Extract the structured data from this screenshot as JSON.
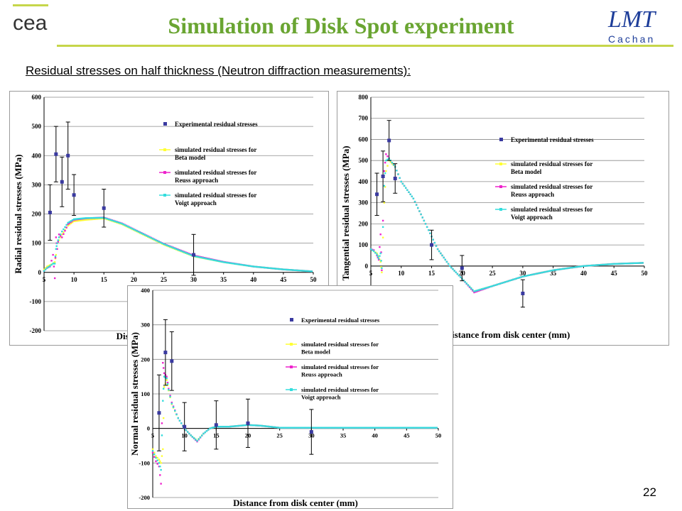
{
  "header": {
    "title": "Simulation of Disk Spot experiment",
    "left_logo_text": "cea",
    "right_logo_text": "LMT",
    "right_logo_subtext": "Cachan",
    "title_rule_color": "#c6d64a",
    "title_color": "#6aa532"
  },
  "subtitle": "Residual stresses on half thickness (Neutron diffraction measurements):",
  "page_number": "22",
  "colors": {
    "experimental": "#3a3aa0",
    "beta": "#ffff33",
    "reuss": "#ee22cc",
    "voigt": "#33dddd"
  },
  "legend_labels": [
    "Experimental residual stresses",
    "simulated residual stresses for Beta model",
    "simulated residual stresses for Reuss approach",
    "simulated residual stresses for Voigt approach"
  ],
  "chart_data": [
    {
      "id": "radial",
      "type": "scatter",
      "title": "",
      "xlabel": "Distance from disk center (mm)",
      "ylabel": "Radial residual stresses (MPa)",
      "xlim": [
        5,
        50
      ],
      "ylim": [
        -200,
        600
      ],
      "xticks": [
        5,
        10,
        15,
        20,
        25,
        30,
        35,
        40,
        45,
        50
      ],
      "yticks": [
        -200,
        -100,
        0,
        100,
        200,
        300,
        400,
        500,
        600
      ],
      "legend_position": "right",
      "experimental": [
        {
          "x": 6.0,
          "y": 205,
          "err": 95
        },
        {
          "x": 7.0,
          "y": 405,
          "err": 95
        },
        {
          "x": 8.0,
          "y": 310,
          "err": 85
        },
        {
          "x": 9.0,
          "y": 400,
          "err": 115
        },
        {
          "x": 10.0,
          "y": 265,
          "err": 70
        },
        {
          "x": 15.0,
          "y": 220,
          "err": 65
        },
        {
          "x": 30.0,
          "y": 60,
          "err": 70
        }
      ],
      "series": [
        {
          "name": "simulated residual stresses for Beta model",
          "key": "beta",
          "x": [
            5,
            5.5,
            6,
            6.5,
            6.8,
            7,
            7.2,
            7.5,
            8,
            9,
            10,
            12,
            15,
            18,
            20,
            25,
            30,
            35,
            40,
            45,
            50
          ],
          "y": [
            10,
            20,
            25,
            30,
            35,
            60,
            100,
            110,
            130,
            160,
            175,
            180,
            185,
            165,
            145,
            95,
            55,
            35,
            20,
            10,
            3
          ]
        },
        {
          "name": "simulated residual stresses for Reuss approach",
          "key": "reuss",
          "x": [
            5,
            5.5,
            6,
            6.5,
            6.8,
            7,
            7.2,
            7.5,
            8,
            9,
            10,
            12,
            15,
            18,
            20,
            25,
            30,
            35,
            40,
            45,
            50
          ],
          "y": [
            5,
            15,
            20,
            60,
            -20,
            120,
            80,
            130,
            120,
            165,
            180,
            185,
            188,
            168,
            148,
            98,
            58,
            36,
            20,
            10,
            3
          ]
        },
        {
          "name": "simulated residual stresses for Voigt approach",
          "key": "voigt",
          "x": [
            5,
            5.5,
            6,
            6.5,
            6.8,
            7,
            7.2,
            7.5,
            8,
            9,
            10,
            12,
            15,
            18,
            20,
            25,
            30,
            35,
            40,
            45,
            50
          ],
          "y": [
            5,
            15,
            22,
            30,
            30,
            80,
            100,
            120,
            140,
            170,
            182,
            186,
            187,
            167,
            147,
            97,
            56,
            35,
            20,
            10,
            3
          ]
        }
      ]
    },
    {
      "id": "tangential",
      "type": "scatter",
      "title": "",
      "xlabel": "Distance from disk center (mm)",
      "ylabel": "Tangential residual stresses (MPa)",
      "xlim": [
        5,
        50
      ],
      "ylim": [
        -300,
        800
      ],
      "xticks": [
        5,
        10,
        15,
        20,
        25,
        30,
        35,
        40,
        45,
        50
      ],
      "yticks": [
        0,
        100,
        200,
        300,
        400,
        500,
        600,
        700,
        800
      ],
      "legend_position": "right",
      "experimental": [
        {
          "x": 6.0,
          "y": 340,
          "err": 100
        },
        {
          "x": 7.0,
          "y": 425,
          "err": 120
        },
        {
          "x": 8.0,
          "y": 595,
          "err": 95
        },
        {
          "x": 9.0,
          "y": 415,
          "err": 70
        },
        {
          "x": 15.0,
          "y": 100,
          "err": 70
        },
        {
          "x": 20.0,
          "y": -10,
          "err": 60
        },
        {
          "x": 30.0,
          "y": -130,
          "err": 65
        }
      ],
      "series": [
        {
          "name": "simulated residual stresses for Beta model",
          "key": "beta",
          "x": [
            5,
            5.5,
            6,
            6.3,
            6.6,
            6.8,
            7.2,
            7.5,
            8,
            9,
            10,
            12,
            14,
            16,
            18,
            20,
            22,
            25,
            30,
            35,
            40,
            45,
            50
          ],
          "y": [
            80,
            70,
            60,
            40,
            20,
            -30,
            300,
            450,
            500,
            470,
            400,
            320,
            200,
            80,
            0,
            -60,
            -120,
            -95,
            -50,
            -20,
            0,
            10,
            15
          ]
        },
        {
          "name": "simulated residual stresses for Reuss approach",
          "key": "reuss",
          "x": [
            5,
            5.5,
            6,
            6.3,
            6.6,
            6.8,
            7.2,
            7.5,
            8,
            9,
            10,
            12,
            14,
            16,
            18,
            20,
            22,
            25,
            30,
            35,
            40,
            45,
            50
          ],
          "y": [
            80,
            75,
            50,
            30,
            150,
            -20,
            450,
            530,
            510,
            470,
            400,
            320,
            200,
            80,
            0,
            -60,
            -125,
            -95,
            -50,
            -20,
            0,
            10,
            15
          ]
        },
        {
          "name": "simulated residual stresses for Voigt approach",
          "key": "voigt",
          "x": [
            5,
            5.5,
            6,
            6.3,
            6.6,
            6.8,
            7.2,
            7.5,
            8,
            9,
            10,
            12,
            14,
            16,
            18,
            20,
            22,
            25,
            30,
            35,
            40,
            45,
            50
          ],
          "y": [
            80,
            70,
            55,
            35,
            60,
            -10,
            380,
            500,
            510,
            470,
            400,
            320,
            200,
            80,
            0,
            -60,
            -120,
            -95,
            -50,
            -20,
            0,
            10,
            15
          ]
        }
      ]
    },
    {
      "id": "normal",
      "type": "scatter",
      "title": "",
      "xlabel": "Distance from disk center (mm)",
      "ylabel": "Normal residual stresses (MPa)",
      "xlim": [
        5,
        50
      ],
      "ylim": [
        -200,
        400
      ],
      "xticks": [
        5,
        10,
        15,
        20,
        25,
        30,
        35,
        40,
        45,
        50
      ],
      "yticks": [
        -200,
        -100,
        0,
        100,
        200,
        300,
        400
      ],
      "legend_position": "right",
      "experimental": [
        {
          "x": 6.0,
          "y": 45,
          "err": 110
        },
        {
          "x": 7.0,
          "y": 220,
          "err": 95
        },
        {
          "x": 8.0,
          "y": 195,
          "err": 85
        },
        {
          "x": 10.0,
          "y": 5,
          "err": 70
        },
        {
          "x": 15.0,
          "y": 10,
          "err": 70
        },
        {
          "x": 20.0,
          "y": 15,
          "err": 70
        },
        {
          "x": 30.0,
          "y": -10,
          "err": 65
        }
      ],
      "series": [
        {
          "name": "simulated residual stresses for Beta model",
          "key": "beta",
          "x": [
            5,
            5.5,
            6,
            6.3,
            6.6,
            6.8,
            7.2,
            7.5,
            8,
            9,
            10,
            11,
            12,
            13,
            14,
            15,
            17,
            20,
            22,
            25,
            30,
            35,
            40,
            45,
            50
          ],
          "y": [
            -60,
            -80,
            -90,
            -100,
            -60,
            120,
            140,
            110,
            70,
            30,
            0,
            -20,
            -35,
            -15,
            0,
            5,
            5,
            10,
            8,
            2,
            2,
            2,
            2,
            2,
            2
          ]
        },
        {
          "name": "simulated residual stresses for Reuss approach",
          "key": "reuss",
          "x": [
            5,
            5.5,
            6,
            6.3,
            6.6,
            6.8,
            7.2,
            7.5,
            8,
            9,
            10,
            11,
            12,
            13,
            14,
            15,
            17,
            20,
            22,
            25,
            30,
            35,
            40,
            45,
            50
          ],
          "y": [
            -70,
            -95,
            -110,
            -160,
            190,
            160,
            150,
            115,
            75,
            30,
            0,
            -20,
            -38,
            -15,
            0,
            5,
            5,
            10,
            8,
            2,
            2,
            2,
            2,
            2,
            2
          ]
        },
        {
          "name": "simulated residual stresses for Voigt approach",
          "key": "voigt",
          "x": [
            5,
            5.5,
            6,
            6.3,
            6.6,
            6.8,
            7.2,
            7.5,
            8,
            9,
            10,
            11,
            12,
            13,
            14,
            15,
            17,
            20,
            22,
            25,
            30,
            35,
            40,
            45,
            50
          ],
          "y": [
            -65,
            -85,
            -100,
            -120,
            80,
            150,
            145,
            112,
            72,
            30,
            0,
            -20,
            -36,
            -15,
            0,
            5,
            5,
            10,
            8,
            2,
            2,
            2,
            2,
            2,
            2
          ]
        }
      ]
    }
  ]
}
